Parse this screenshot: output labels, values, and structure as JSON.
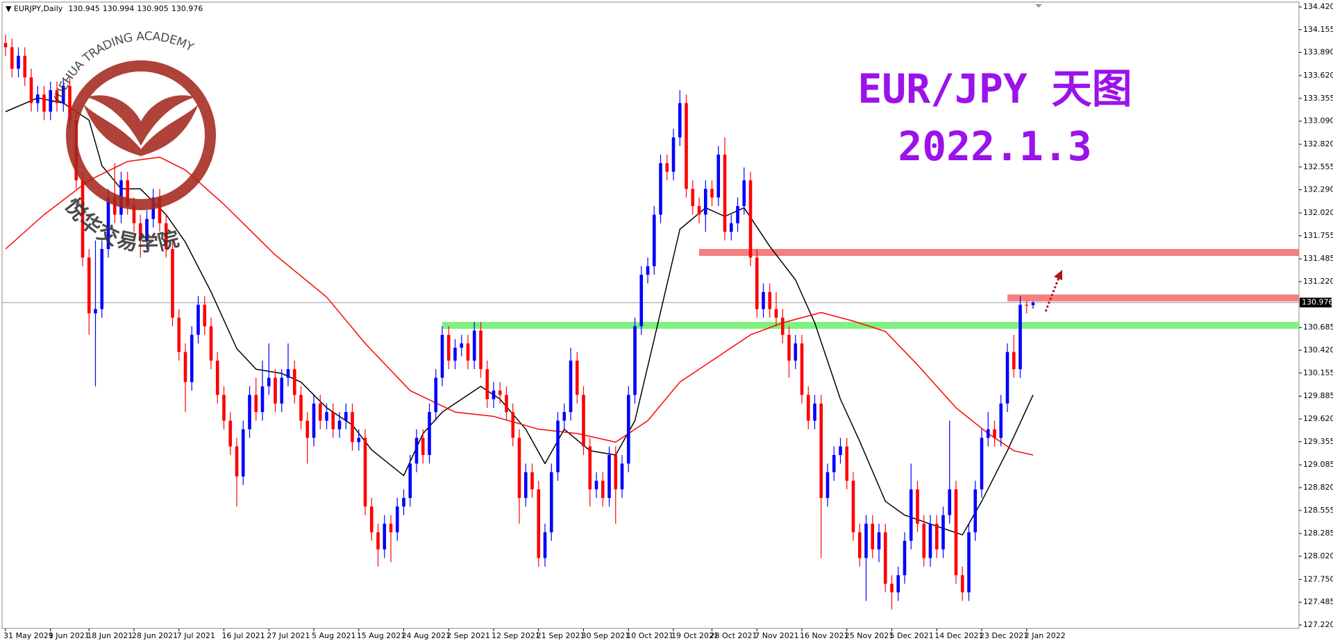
{
  "chart_data": {
    "type": "candlestick",
    "symbol": "EURJPY,Daily",
    "title": "EUR/JPY 天图",
    "subtitle": "2022.1.3",
    "watermark": {
      "en": "YUEHUA TRADING ACADEMY",
      "cn": "悦华交易学院"
    },
    "up_color": "#0000ff",
    "down_color": "#ff0000",
    "ylim": [
      127.22,
      134.42
    ],
    "yticks": [
      {
        "value": 134.42,
        "label": "134.420"
      },
      134.155,
      {
        "value": 133.89,
        "label": "133.890"
      },
      {
        "value": 133.62,
        "label": "133.620"
      },
      133.355,
      {
        "value": 133.09,
        "label": "133.090"
      },
      {
        "value": 132.82,
        "label": "132.820"
      },
      132.555,
      {
        "value": 132.29,
        "label": "132.290"
      },
      {
        "value": 132.02,
        "label": "132.020"
      },
      131.755,
      131.485,
      {
        "value": 131.22,
        "label": "131.220"
      },
      130.685,
      {
        "value": 130.42,
        "label": "130.420"
      },
      130.155,
      129.885,
      {
        "value": 129.62,
        "label": "129.620"
      },
      129.355,
      129.085,
      {
        "value": 128.82,
        "label": "128.820"
      },
      128.555,
      128.285,
      {
        "value": 128.02,
        "label": "128.020"
      },
      {
        "value": 127.75,
        "label": "127.750"
      },
      127.485,
      {
        "value": 127.22,
        "label": "127.220"
      }
    ],
    "xlim": [
      0,
      160
    ],
    "xticks": [
      {
        "value": 0,
        "label": "31 May 2021"
      },
      {
        "value": 7,
        "label": "9 Jun 2021"
      },
      {
        "value": 13,
        "label": "18 Jun 2021"
      },
      {
        "value": 20,
        "label": "28 Jun 2021"
      },
      {
        "value": 27,
        "label": "7 Jul 2021"
      },
      {
        "value": 34,
        "label": "16 Jul 2021"
      },
      {
        "value": 41,
        "label": "27 Jul 2021"
      },
      {
        "value": 48,
        "label": "5 Aug 2021"
      },
      {
        "value": 55,
        "label": "15 Aug 2021"
      },
      {
        "value": 62,
        "label": "24 Aug 2021"
      },
      {
        "value": 69,
        "label": "2 Sep 2021"
      },
      {
        "value": 76,
        "label": "12 Sep 2021"
      },
      {
        "value": 83,
        "label": "21 Sep 2021"
      },
      {
        "value": 90,
        "label": "30 Sep 2021"
      },
      {
        "value": 97,
        "label": "10 Oct 2021"
      },
      {
        "value": 104,
        "label": "19 Oct 2021"
      },
      {
        "value": 110,
        "label": "28 Oct 2021"
      },
      {
        "value": 117,
        "label": "7 Nov 2021"
      },
      {
        "value": 124,
        "label": "16 Nov 2021"
      },
      {
        "value": 131,
        "label": "25 Nov 2021"
      },
      {
        "value": 138,
        "label": "5 Dec 2021"
      },
      {
        "value": 145,
        "label": "14 Dec 2021"
      },
      {
        "value": 152,
        "label": "23 Dec 2021"
      },
      {
        "value": 159,
        "label": "2 Jan 2022"
      }
    ],
    "ohlc": [
      [
        134.0,
        134.1,
        133.85,
        133.95
      ],
      [
        133.95,
        134.05,
        133.6,
        133.7
      ],
      [
        133.7,
        133.95,
        133.6,
        133.85
      ],
      [
        133.85,
        133.95,
        133.5,
        133.6
      ],
      [
        133.6,
        133.7,
        133.2,
        133.3
      ],
      [
        133.3,
        133.5,
        133.2,
        133.4
      ],
      [
        133.4,
        133.5,
        133.1,
        133.2
      ],
      [
        133.2,
        133.55,
        133.1,
        133.45
      ],
      [
        133.45,
        133.55,
        133.2,
        133.3
      ],
      [
        133.3,
        133.6,
        133.2,
        133.5
      ],
      [
        133.5,
        133.6,
        133.0,
        133.1
      ],
      [
        133.1,
        133.2,
        132.3,
        132.4
      ],
      [
        132.4,
        132.5,
        131.4,
        131.5
      ],
      [
        131.5,
        131.6,
        130.6,
        130.85
      ],
      [
        130.85,
        131.7,
        130.0,
        130.9
      ],
      [
        130.9,
        131.7,
        130.8,
        131.6
      ],
      [
        131.6,
        132.3,
        131.5,
        132.2
      ],
      [
        132.2,
        132.6,
        131.9,
        132.0
      ],
      [
        132.0,
        132.5,
        131.9,
        132.4
      ],
      [
        132.4,
        132.5,
        132.0,
        132.1
      ],
      [
        132.1,
        132.2,
        131.8,
        131.9
      ],
      [
        131.9,
        132.0,
        131.5,
        131.7
      ],
      [
        131.7,
        132.05,
        131.6,
        131.95
      ],
      [
        131.95,
        132.3,
        131.85,
        132.2
      ],
      [
        132.2,
        132.3,
        131.8,
        131.9
      ],
      [
        131.9,
        132.0,
        131.5,
        131.6
      ],
      [
        131.6,
        131.7,
        130.7,
        130.8
      ],
      [
        130.8,
        130.9,
        130.3,
        130.4
      ],
      [
        130.4,
        130.5,
        129.7,
        130.05
      ],
      [
        130.05,
        130.7,
        129.95,
        130.6
      ],
      [
        130.6,
        131.05,
        130.5,
        130.95
      ],
      [
        130.95,
        131.05,
        130.6,
        130.7
      ],
      [
        130.7,
        130.8,
        130.2,
        130.3
      ],
      [
        130.3,
        130.4,
        129.8,
        129.9
      ],
      [
        129.9,
        130.0,
        129.5,
        129.6
      ],
      [
        129.6,
        129.7,
        129.2,
        129.3
      ],
      [
        129.3,
        129.4,
        128.6,
        128.95
      ],
      [
        128.95,
        129.6,
        128.85,
        129.5
      ],
      [
        129.5,
        130.0,
        129.4,
        129.9
      ],
      [
        129.9,
        130.1,
        129.6,
        129.7
      ],
      [
        129.7,
        130.3,
        129.6,
        130.0
      ],
      [
        130.0,
        130.5,
        129.9,
        130.1
      ],
      [
        130.1,
        130.2,
        129.7,
        129.8
      ],
      [
        129.8,
        130.2,
        129.7,
        130.1
      ],
      [
        130.1,
        130.5,
        130.0,
        130.2
      ],
      [
        130.2,
        130.3,
        129.8,
        129.9
      ],
      [
        129.9,
        130.0,
        129.5,
        129.6
      ],
      [
        129.6,
        129.7,
        129.1,
        129.4
      ],
      [
        129.4,
        129.9,
        129.3,
        129.8
      ],
      [
        129.8,
        129.9,
        129.5,
        129.6
      ],
      [
        129.6,
        129.8,
        129.5,
        129.7
      ],
      [
        129.7,
        129.8,
        129.4,
        129.5
      ],
      [
        129.5,
        129.7,
        129.4,
        129.6
      ],
      [
        129.6,
        129.8,
        129.5,
        129.7
      ],
      [
        129.7,
        129.8,
        129.25,
        129.35
      ],
      [
        129.35,
        129.5,
        129.25,
        129.4
      ],
      [
        129.4,
        129.5,
        128.5,
        128.6
      ],
      [
        128.6,
        128.7,
        128.2,
        128.3
      ],
      [
        128.3,
        128.4,
        127.9,
        128.1
      ],
      [
        128.1,
        128.5,
        128.0,
        128.4
      ],
      [
        128.4,
        128.5,
        127.95,
        128.3
      ],
      [
        128.3,
        128.7,
        128.2,
        128.6
      ],
      [
        128.6,
        128.8,
        128.5,
        128.7
      ],
      [
        128.7,
        129.2,
        128.6,
        129.1
      ],
      [
        129.1,
        129.5,
        129.0,
        129.4
      ],
      [
        129.4,
        129.5,
        129.1,
        129.2
      ],
      [
        129.2,
        129.8,
        129.1,
        129.7
      ],
      [
        129.7,
        130.2,
        129.6,
        130.1
      ],
      [
        130.1,
        130.7,
        130.0,
        130.6
      ],
      [
        130.6,
        130.7,
        130.2,
        130.3
      ],
      [
        130.3,
        130.55,
        130.2,
        130.45
      ],
      [
        130.45,
        130.6,
        130.35,
        130.5
      ],
      [
        130.5,
        130.6,
        130.2,
        130.3
      ],
      [
        130.3,
        130.75,
        130.2,
        130.65
      ],
      [
        130.65,
        130.75,
        130.1,
        130.2
      ],
      [
        130.2,
        130.3,
        129.75,
        129.85
      ],
      [
        129.85,
        130.05,
        129.75,
        129.95
      ],
      [
        129.95,
        130.05,
        129.8,
        129.9
      ],
      [
        129.9,
        130.0,
        129.6,
        129.7
      ],
      [
        129.7,
        129.8,
        129.3,
        129.4
      ],
      [
        129.4,
        129.5,
        128.4,
        128.7
      ],
      [
        128.7,
        129.1,
        128.6,
        129.0
      ],
      [
        129.0,
        129.1,
        128.7,
        128.8
      ],
      [
        128.8,
        128.9,
        127.9,
        128.0
      ],
      [
        128.0,
        128.4,
        127.9,
        128.3
      ],
      [
        128.3,
        129.1,
        128.2,
        129.0
      ],
      [
        129.0,
        129.7,
        128.9,
        129.6
      ],
      [
        129.6,
        129.8,
        129.5,
        129.7
      ],
      [
        129.7,
        130.45,
        129.6,
        130.3
      ],
      [
        130.3,
        130.4,
        129.8,
        129.9
      ],
      [
        129.9,
        130.0,
        129.2,
        129.3
      ],
      [
        129.3,
        129.4,
        128.6,
        128.8
      ],
      [
        128.8,
        129.0,
        128.7,
        128.9
      ],
      [
        128.9,
        129.0,
        128.6,
        128.7
      ],
      [
        128.7,
        129.3,
        128.6,
        129.2
      ],
      [
        129.2,
        129.3,
        128.4,
        128.8
      ],
      [
        128.8,
        129.2,
        128.7,
        129.1
      ],
      [
        129.1,
        130.0,
        129.0,
        129.9
      ],
      [
        129.9,
        130.8,
        129.8,
        130.7
      ],
      [
        130.7,
        131.4,
        130.6,
        131.3
      ],
      [
        131.3,
        131.5,
        131.2,
        131.4
      ],
      [
        131.4,
        132.1,
        131.3,
        132.0
      ],
      [
        132.0,
        132.7,
        131.9,
        132.6
      ],
      [
        132.6,
        132.7,
        132.4,
        132.5
      ],
      [
        132.5,
        133.0,
        132.4,
        132.9
      ],
      [
        132.9,
        133.45,
        132.8,
        133.3
      ],
      [
        133.3,
        133.4,
        132.2,
        132.3
      ],
      [
        132.3,
        132.4,
        132.0,
        132.1
      ],
      [
        132.1,
        132.2,
        131.9,
        132.0
      ],
      [
        132.0,
        132.4,
        131.8,
        132.3
      ],
      [
        132.3,
        132.4,
        132.1,
        132.2
      ],
      [
        132.2,
        132.8,
        132.1,
        132.7
      ],
      [
        132.7,
        132.9,
        131.7,
        131.8
      ],
      [
        131.8,
        132.0,
        131.7,
        131.9
      ],
      [
        131.9,
        132.2,
        131.8,
        132.1
      ],
      [
        132.1,
        132.55,
        132.0,
        132.4
      ],
      [
        132.4,
        132.5,
        131.4,
        131.5
      ],
      [
        131.5,
        131.6,
        130.8,
        130.9
      ],
      [
        130.9,
        131.2,
        130.8,
        131.1
      ],
      [
        131.1,
        131.2,
        130.8,
        130.9
      ],
      [
        130.9,
        131.1,
        130.7,
        130.8
      ],
      [
        130.8,
        130.9,
        130.5,
        130.6
      ],
      [
        130.6,
        130.7,
        130.1,
        130.3
      ],
      [
        130.3,
        130.6,
        130.2,
        130.5
      ],
      [
        130.5,
        130.6,
        129.8,
        129.9
      ],
      [
        129.9,
        130.0,
        129.5,
        129.6
      ],
      [
        129.6,
        129.9,
        129.5,
        129.8
      ],
      [
        129.8,
        129.9,
        128.0,
        128.7
      ],
      [
        128.7,
        129.1,
        128.6,
        129.0
      ],
      [
        129.0,
        129.3,
        128.9,
        129.2
      ],
      [
        129.2,
        129.4,
        129.1,
        129.3
      ],
      [
        129.3,
        129.4,
        128.8,
        128.9
      ],
      [
        128.9,
        129.0,
        128.2,
        128.3
      ],
      [
        128.3,
        128.4,
        127.9,
        128.0
      ],
      [
        128.0,
        128.5,
        127.5,
        128.4
      ],
      [
        128.4,
        128.5,
        128.0,
        128.1
      ],
      [
        128.1,
        128.4,
        127.95,
        128.3
      ],
      [
        128.3,
        128.4,
        127.6,
        127.7
      ],
      [
        127.7,
        127.8,
        127.4,
        127.6
      ],
      [
        127.6,
        127.9,
        127.5,
        127.8
      ],
      [
        127.8,
        128.3,
        127.7,
        128.2
      ],
      [
        128.2,
        129.1,
        128.1,
        128.8
      ],
      [
        128.8,
        128.9,
        128.3,
        128.4
      ],
      [
        128.4,
        128.5,
        127.9,
        128.0
      ],
      [
        128.0,
        128.5,
        127.9,
        128.4
      ],
      [
        128.4,
        128.5,
        128.0,
        128.1
      ],
      [
        128.1,
        128.6,
        128.0,
        128.5
      ],
      [
        128.5,
        129.6,
        128.4,
        128.8
      ],
      [
        128.8,
        128.9,
        127.7,
        127.8
      ],
      [
        127.8,
        127.9,
        127.5,
        127.6
      ],
      [
        127.6,
        128.4,
        127.5,
        128.3
      ],
      [
        128.3,
        128.9,
        128.2,
        128.8
      ],
      [
        128.8,
        129.5,
        128.7,
        129.4
      ],
      [
        129.4,
        129.7,
        129.3,
        129.5
      ],
      [
        129.5,
        129.6,
        129.3,
        129.4
      ],
      [
        129.4,
        129.9,
        129.3,
        129.8
      ],
      [
        129.8,
        130.5,
        129.7,
        130.4
      ],
      [
        130.4,
        130.6,
        130.1,
        130.2
      ],
      [
        130.2,
        131.05,
        130.1,
        130.95
      ],
      [
        130.95,
        131.0,
        130.85,
        130.94
      ],
      [
        130.945,
        130.994,
        130.905,
        130.976
      ]
    ],
    "lines": [
      {
        "color": "#000000",
        "x": [
          0,
          5,
          9,
          13,
          15,
          18,
          21,
          25,
          28,
          32,
          36,
          39,
          43,
          46,
          50,
          54,
          57,
          62,
          65,
          68,
          71,
          74,
          77,
          81,
          84,
          87,
          91,
          95,
          98,
          101,
          105,
          109,
          112,
          115,
          119,
          123,
          126,
          130,
          133,
          137,
          140,
          145,
          149,
          152,
          156,
          160
        ],
        "values": [
          133.2,
          133.36,
          133.3,
          133.1,
          132.57,
          132.3,
          132.3,
          132.0,
          131.68,
          131.1,
          130.44,
          130.2,
          130.15,
          130.05,
          129.75,
          129.55,
          129.26,
          128.96,
          129.45,
          129.7,
          129.85,
          130.0,
          129.85,
          129.5,
          129.1,
          129.5,
          129.25,
          129.2,
          129.6,
          130.55,
          131.83,
          132.08,
          131.98,
          132.08,
          131.63,
          131.24,
          130.74,
          129.85,
          129.36,
          128.66,
          128.5,
          128.37,
          128.27,
          128.66,
          129.25,
          129.9
        ]
      },
      {
        "color": "#ff0000",
        "x": [
          0,
          6,
          13,
          19,
          24,
          28,
          34,
          42,
          50,
          56,
          63,
          70,
          76,
          83,
          89,
          95,
          100,
          105,
          111,
          116,
          121,
          127,
          132,
          137,
          142,
          148,
          153,
          157,
          160
        ],
        "values": [
          131.6,
          132.0,
          132.4,
          132.62,
          132.67,
          132.52,
          132.12,
          131.53,
          131.04,
          130.5,
          129.95,
          129.7,
          129.65,
          129.5,
          129.45,
          129.35,
          129.6,
          130.05,
          130.35,
          130.6,
          130.74,
          130.86,
          130.76,
          130.64,
          130.25,
          129.75,
          129.45,
          129.25,
          129.2
        ]
      }
    ],
    "zones": [
      {
        "color": "#f47f7f",
        "start": 108,
        "level": 131.56
      },
      {
        "color": "#f47f7f",
        "start": 156,
        "level": 131.03
      },
      {
        "color": "#80f080",
        "start": 68,
        "level": 130.71
      }
    ]
  }
}
